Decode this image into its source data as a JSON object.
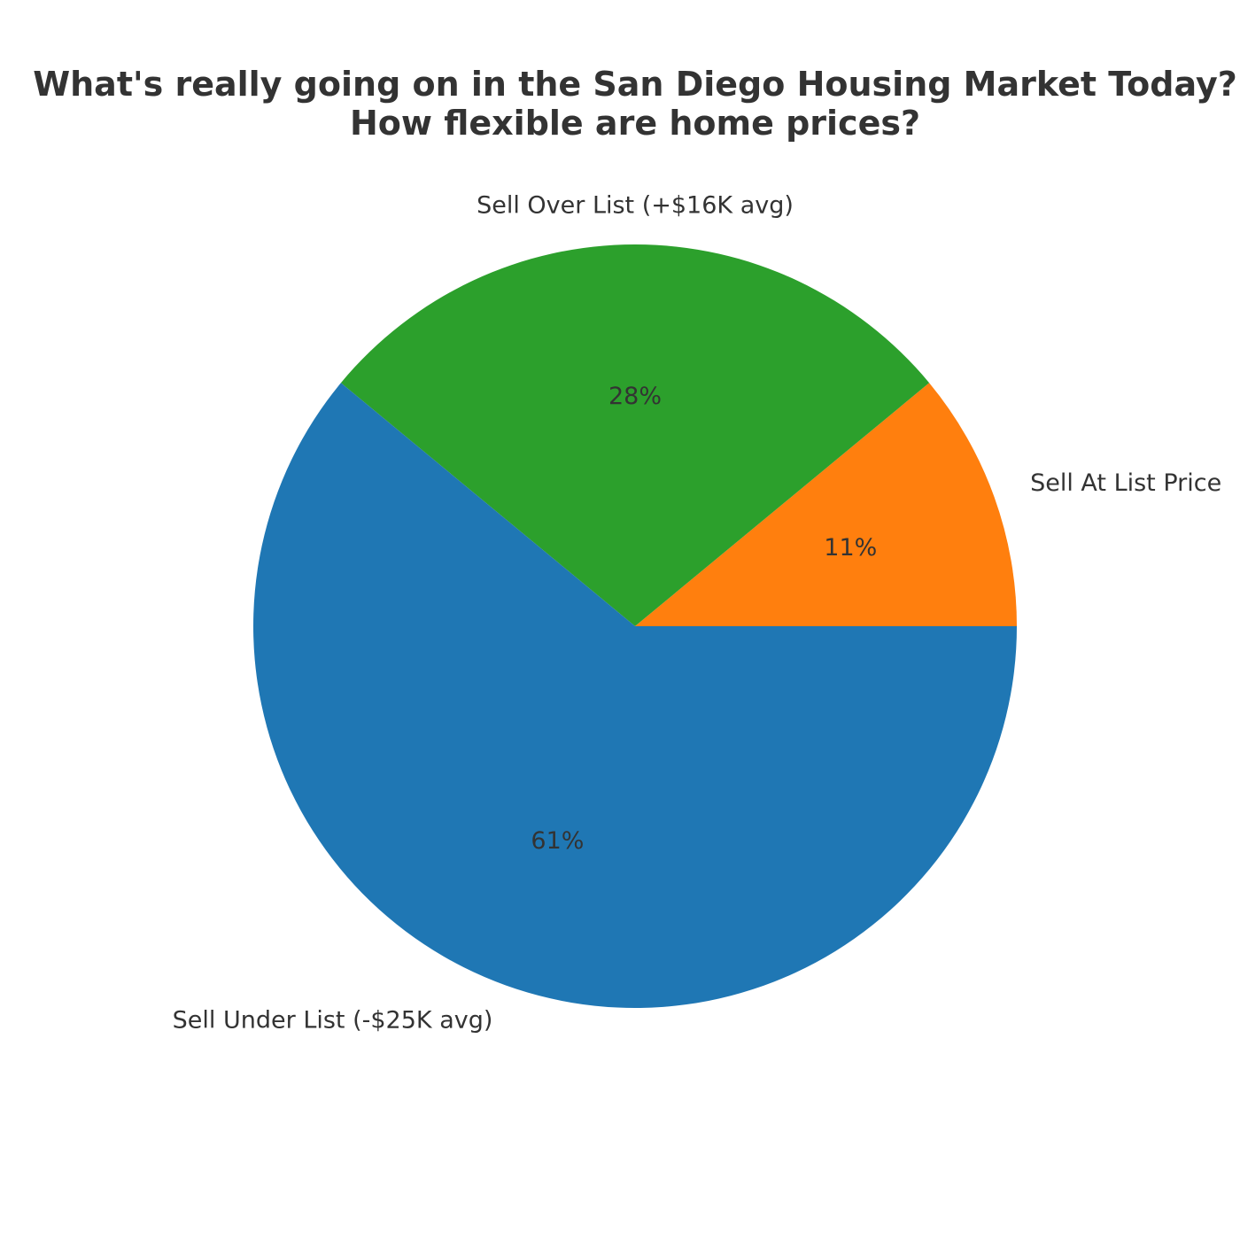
{
  "chart_data": {
    "type": "pie",
    "title": "What's really going on in the San Diego Housing Market Today?",
    "subtitle": "How flexible are home prices?",
    "categories": [
      "Sell At List Price",
      "Sell Over List (+$16K avg)",
      "Sell Under List (-$25K avg)"
    ],
    "values": [
      11,
      28,
      61
    ],
    "percent_labels": [
      "11%",
      "28%",
      "61%"
    ],
    "colors": [
      "#ff7f0e",
      "#2ca02c",
      "#1f77b4"
    ],
    "start_angle_deg": 0,
    "direction": "counterclockwise",
    "legend": "none"
  }
}
